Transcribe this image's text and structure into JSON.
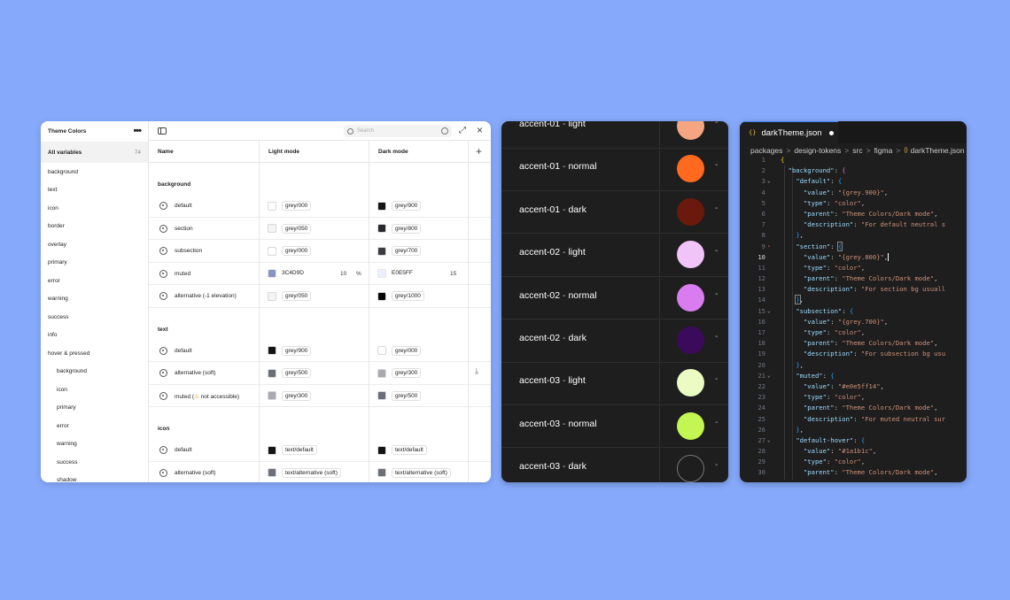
{
  "figma": {
    "title": "Theme Colors",
    "menu_icon": "more-dots-icon",
    "all_variables_label": "All variables",
    "all_variables_count": "74",
    "groups": [
      {
        "label": "background",
        "indent": false
      },
      {
        "label": "text",
        "indent": false
      },
      {
        "label": "icon",
        "indent": false
      },
      {
        "label": "border",
        "indent": false
      },
      {
        "label": "overlay",
        "indent": false
      },
      {
        "label": "primary",
        "indent": false
      },
      {
        "label": "error",
        "indent": false
      },
      {
        "label": "warning",
        "indent": false
      },
      {
        "label": "success",
        "indent": false
      },
      {
        "label": "info",
        "indent": false
      },
      {
        "label": "hover & pressed",
        "indent": false
      },
      {
        "label": "background",
        "indent": true
      },
      {
        "label": "icon",
        "indent": true
      },
      {
        "label": "primary",
        "indent": true
      },
      {
        "label": "error",
        "indent": true
      },
      {
        "label": "warning",
        "indent": true
      },
      {
        "label": "success",
        "indent": true
      },
      {
        "label": "shadow",
        "indent": true
      }
    ],
    "search_placeholder": "Search",
    "columns": {
      "name": "Name",
      "light": "Light mode",
      "dark": "Dark mode",
      "add": "+"
    },
    "sections": [
      {
        "title": "background",
        "rows": [
          {
            "name": "default",
            "light": "grey/000",
            "dark": "grey/900"
          },
          {
            "name": "section",
            "light": "grey/050",
            "dark": "grey/800"
          },
          {
            "name": "subsection",
            "light": "grey/000",
            "dark": "grey/700"
          },
          {
            "name": "muted",
            "light": "3C4D9D",
            "light_pct": "10",
            "light_pct_unit": "%",
            "dark": "E0E5FF",
            "dark_pct": "15"
          },
          {
            "name": "alternative (-1 elevation)",
            "light": "grey/050",
            "dark": "grey/1000"
          }
        ]
      },
      {
        "title": "text",
        "rows": [
          {
            "name": "default",
            "light": "grey/900",
            "dark": "grey/000"
          },
          {
            "name": "alternative (soft)",
            "light": "grey/500",
            "dark": "grey/300"
          },
          {
            "name_pre": "muted (",
            "name_warn": "⚠",
            "name_post": " not accessible)",
            "light": "grey/300",
            "dark": "grey/500"
          }
        ]
      },
      {
        "title": "icon",
        "rows": [
          {
            "name": "default",
            "light": "text/default",
            "dark": "text/default"
          },
          {
            "name": "alternative (soft)",
            "light": "text/alternative (soft)",
            "dark": "text/alternative (soft)"
          }
        ]
      }
    ],
    "colors": {
      "grey000": "#ffffff",
      "grey050": "#f4f4f5",
      "grey300": "#a9abb1",
      "grey500": "#6b6f78",
      "grey700": "#3a3c40",
      "grey800": "#27282b",
      "grey900": "#141414",
      "grey1000": "#050505",
      "muted_light": "#3c4d9d",
      "muted_dark": "#e0e5ff"
    }
  },
  "accents": {
    "rows": [
      {
        "name": "accent-01",
        "sep": " - ",
        "variant": "light",
        "color": "#f5a582",
        "dash": "-"
      },
      {
        "name": "accent-01",
        "sep": " - ",
        "variant": "normal",
        "color": "#ff6a1f",
        "dash": "-"
      },
      {
        "name": "accent-01",
        "sep": " - ",
        "variant": "dark",
        "color": "#6b190c",
        "dash": "-"
      },
      {
        "name": "accent-02",
        "sep": " - ",
        "variant": "light",
        "color": "#f0c4f8",
        "dash": "-"
      },
      {
        "name": "accent-02",
        "sep": " - ",
        "variant": "normal",
        "color": "#d97cf0",
        "dash": "-"
      },
      {
        "name": "accent-02",
        "sep": " - ",
        "variant": "dark",
        "color": "#3c0a5c",
        "dash": "-"
      },
      {
        "name": "accent-03",
        "sep": " - ",
        "variant": "light",
        "color": "#eafcc4",
        "dash": "-"
      },
      {
        "name": "accent-03",
        "sep": " - ",
        "variant": "normal",
        "color": "#c3f553",
        "dash": "-"
      },
      {
        "name": "accent-03",
        "sep": " - ",
        "variant": "dark",
        "color": "#1e1e1e",
        "dash": "-"
      }
    ]
  },
  "editor": {
    "tab_icon": "{}",
    "tab_title": "darkTheme.json",
    "breadcrumbs": [
      "packages",
      "design-tokens",
      "src",
      "figma",
      "darkTheme.json"
    ],
    "breadcrumb_sep": ">",
    "active_line": 10,
    "fold_markers": {
      "3": "⌄",
      "9": "›",
      "15": "⌄",
      "21": "⌄",
      "27": "⌄"
    }
  }
}
